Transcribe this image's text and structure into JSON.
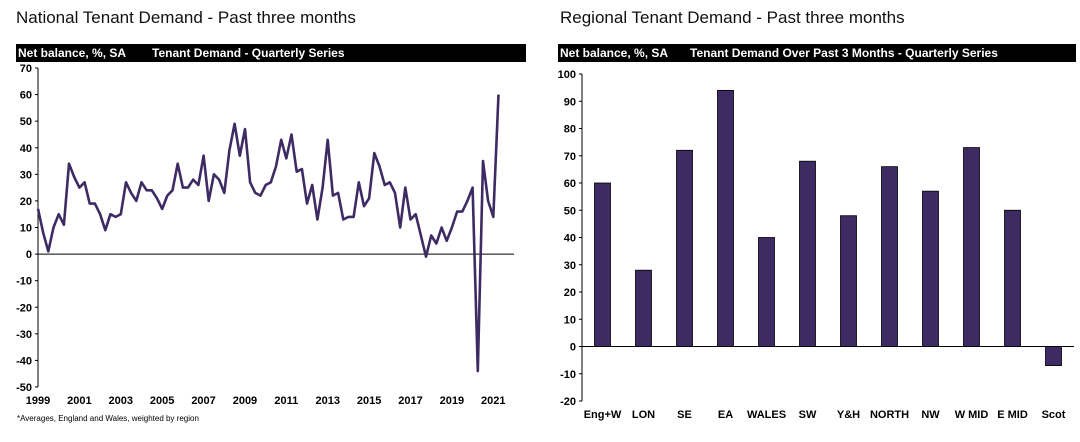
{
  "colors": {
    "series": "#3f2b63",
    "band": "#000000",
    "zero_line": "#000000"
  },
  "left": {
    "title": "National Tenant Demand - Past three months",
    "band_left": "Net balance, %, SA",
    "band_center": "Tenant Demand - Quarterly Series",
    "footnote": "*Averages, England and Wales, weighted by region"
  },
  "right": {
    "title": "Regional Tenant Demand - Past three months",
    "band_left": "Net balance, %, SA",
    "band_center": "Tenant Demand Over Past 3 Months - Quarterly Series"
  },
  "chart_data": [
    {
      "type": "line",
      "title": "Tenant Demand - Quarterly Series",
      "ylabel": "Net balance, %, SA",
      "ylim": [
        -50,
        70
      ],
      "yticks": [
        -50,
        -40,
        -30,
        -20,
        -10,
        0,
        10,
        20,
        30,
        40,
        50,
        60,
        70
      ],
      "xlim": [
        1999,
        2022
      ],
      "xticks": [
        "1999",
        "2001",
        "2003",
        "2005",
        "2007",
        "2009",
        "2011",
        "2013",
        "2015",
        "2017",
        "2019",
        "2021"
      ],
      "grid": false,
      "series": [
        {
          "x": [
            1999.0,
            1999.25,
            1999.5,
            1999.75,
            2000.0,
            2000.25,
            2000.5,
            2000.75,
            2001.0,
            2001.25,
            2001.5,
            2001.75,
            2002.0,
            2002.25,
            2002.5,
            2002.75,
            2003.0,
            2003.25,
            2003.5,
            2003.75,
            2004.0,
            2004.25,
            2004.5,
            2004.75,
            2005.0,
            2005.25,
            2005.5,
            2005.75,
            2006.0,
            2006.25,
            2006.5,
            2006.75,
            2007.0,
            2007.25,
            2007.5,
            2007.75,
            2008.0,
            2008.25,
            2008.5,
            2008.75,
            2009.0,
            2009.25,
            2009.5,
            2009.75,
            2010.0,
            2010.25,
            2010.5,
            2010.75,
            2011.0,
            2011.25,
            2011.5,
            2011.75,
            2012.0,
            2012.25,
            2012.5,
            2012.75,
            2013.0,
            2013.25,
            2013.5,
            2013.75,
            2014.0,
            2014.25,
            2014.5,
            2014.75,
            2015.0,
            2015.25,
            2015.5,
            2015.75,
            2016.0,
            2016.25,
            2016.5,
            2016.75,
            2017.0,
            2017.25,
            2017.5,
            2017.75,
            2018.0,
            2018.25,
            2018.5,
            2018.75,
            2019.0,
            2019.25,
            2019.5,
            2019.75,
            2020.0,
            2020.25,
            2020.5,
            2020.75,
            2021.0,
            2021.25
          ],
          "values": [
            17,
            8,
            1,
            10,
            15,
            11,
            34,
            29,
            25,
            27,
            19,
            19,
            15,
            9,
            15,
            14,
            15,
            27,
            23,
            20,
            27,
            24,
            24,
            21,
            17,
            22,
            24,
            34,
            25,
            25,
            28,
            26,
            37,
            20,
            30,
            28,
            23,
            39,
            49,
            37,
            47,
            27,
            23,
            22,
            26,
            27,
            33,
            43,
            36,
            45,
            31,
            32,
            19,
            26,
            13,
            25,
            43,
            22,
            23,
            13,
            14,
            14,
            27,
            18,
            21,
            38,
            33,
            26,
            27,
            23,
            10,
            25,
            13,
            15,
            7,
            -1,
            7,
            4,
            10,
            5,
            10,
            16,
            16,
            20,
            25,
            -44,
            35,
            20,
            14,
            60
          ]
        }
      ]
    },
    {
      "type": "bar",
      "title": "Tenant Demand Over Past 3 Months - Quarterly Series",
      "ylabel": "Net balance, %, SA",
      "ylim": [
        -20,
        100
      ],
      "yticks": [
        -20,
        -10,
        0,
        10,
        20,
        30,
        40,
        50,
        60,
        70,
        80,
        90,
        100
      ],
      "grid": false,
      "categories": [
        "Eng+W",
        "LON",
        "SE",
        "EA",
        "WALES",
        "SW",
        "Y&H",
        "NORTH",
        "NW",
        "W MID",
        "E MID",
        "Scot"
      ],
      "values": [
        60,
        28,
        72,
        94,
        40,
        68,
        48,
        66,
        57,
        73,
        50,
        -7
      ]
    }
  ]
}
